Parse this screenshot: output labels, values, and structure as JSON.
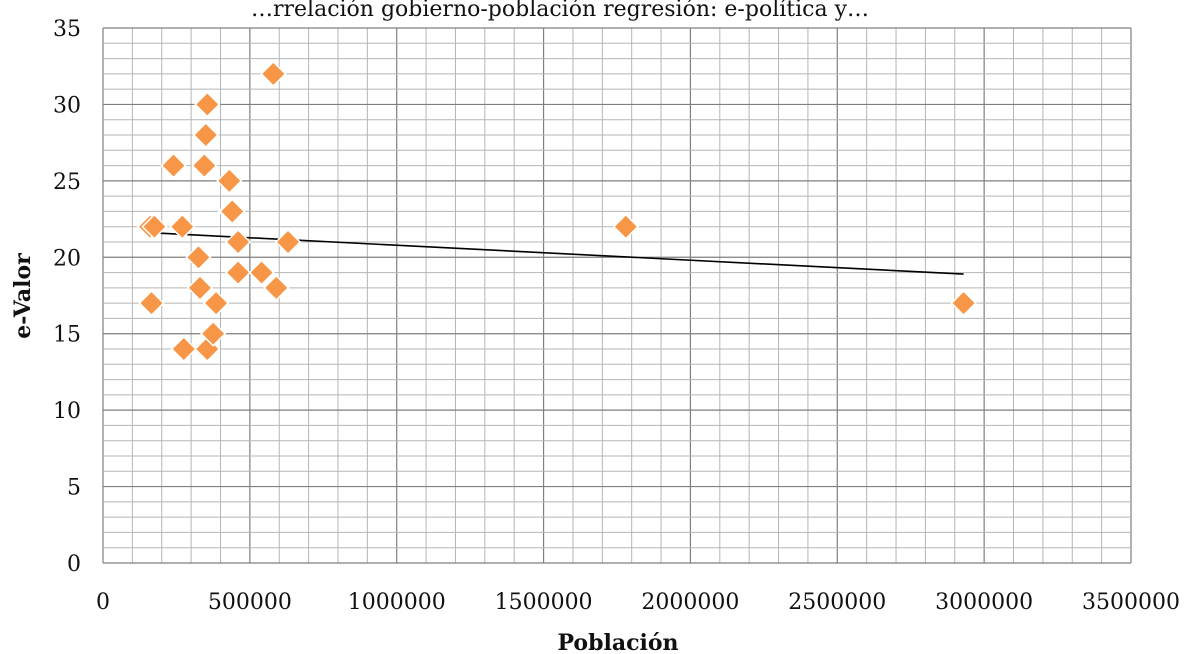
{
  "chart_data": {
    "type": "scatter",
    "title": "…rrelación gobierno-población regresión: e-política y…",
    "xlabel": "Población",
    "ylabel": "e-Valor",
    "xlim": [
      0,
      3500000
    ],
    "ylim": [
      0,
      35
    ],
    "xticks": [
      "0",
      "500000",
      "1000000",
      "1500000",
      "2000000",
      "2500000",
      "3000000",
      "3500000"
    ],
    "yticks": [
      "0",
      "5",
      "10",
      "15",
      "20",
      "25",
      "30",
      "35"
    ],
    "grid": true,
    "legend": "none",
    "marker": "diamond",
    "marker_color": "#f79646",
    "marker_edge_color": "#ffffff",
    "trendline_color": "#000000",
    "points": [
      {
        "x": 160000,
        "y": 22
      },
      {
        "x": 165000,
        "y": 17
      },
      {
        "x": 175000,
        "y": 22
      },
      {
        "x": 240000,
        "y": 26
      },
      {
        "x": 270000,
        "y": 22
      },
      {
        "x": 275000,
        "y": 14
      },
      {
        "x": 325000,
        "y": 20
      },
      {
        "x": 330000,
        "y": 18
      },
      {
        "x": 345000,
        "y": 26
      },
      {
        "x": 350000,
        "y": 28
      },
      {
        "x": 355000,
        "y": 30
      },
      {
        "x": 355000,
        "y": 14
      },
      {
        "x": 375000,
        "y": 15
      },
      {
        "x": 385000,
        "y": 17
      },
      {
        "x": 430000,
        "y": 25
      },
      {
        "x": 435000,
        "y": 23
      },
      {
        "x": 440000,
        "y": 23
      },
      {
        "x": 460000,
        "y": 21
      },
      {
        "x": 460000,
        "y": 19
      },
      {
        "x": 540000,
        "y": 19
      },
      {
        "x": 580000,
        "y": 32
      },
      {
        "x": 590000,
        "y": 18
      },
      {
        "x": 630000,
        "y": 21
      },
      {
        "x": 1780000,
        "y": 22
      },
      {
        "x": 2930000,
        "y": 17
      }
    ],
    "trendline": {
      "x": [
        170000,
        2930000
      ],
      "y": [
        21.6,
        18.9
      ]
    }
  }
}
